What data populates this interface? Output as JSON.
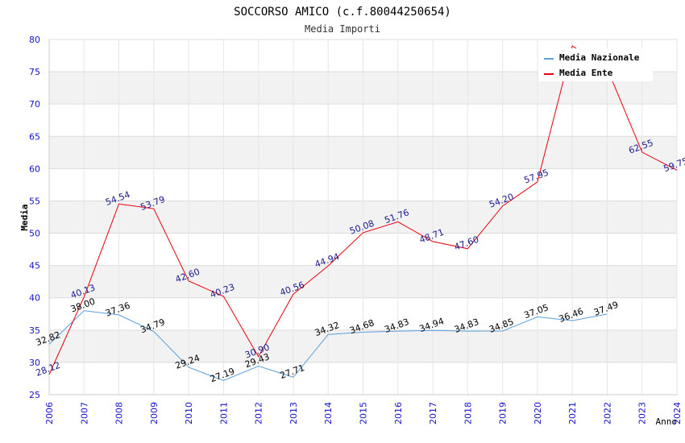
{
  "chart_data": {
    "type": "line",
    "title": "SOCCORSO AMICO (c.f.80044250654)",
    "subtitle": "Media Importi",
    "xlabel": "Anno",
    "ylabel": "Media",
    "ylim": [
      25,
      80
    ],
    "yticks": [
      "25",
      "30",
      "35",
      "40",
      "45",
      "50",
      "55",
      "60",
      "65",
      "70",
      "75",
      "80"
    ],
    "x": [
      "2006",
      "2007",
      "2008",
      "2009",
      "2010",
      "2011",
      "2012",
      "2013",
      "2014",
      "2015",
      "2016",
      "2017",
      "2018",
      "2019",
      "2020",
      "2021",
      "2022",
      "2023",
      "2024"
    ],
    "grid": true,
    "legend_position": "top-right",
    "series": [
      {
        "name": "Media Nazionale",
        "color": "#5aa0dc",
        "label_color": "#000000",
        "values": [
          32.82,
          38.0,
          37.36,
          34.79,
          29.24,
          27.19,
          29.43,
          27.71,
          34.32,
          34.68,
          34.83,
          34.94,
          34.83,
          34.85,
          37.05,
          36.46,
          37.49,
          null,
          null
        ],
        "labels": [
          "32.82",
          "38.00",
          "37.36",
          "34.79",
          "29.24",
          "27.19",
          "29.43",
          "27.71",
          "34.32",
          "34.68",
          "34.83",
          "34.94",
          "34.83",
          "34.85",
          "37.05",
          "36.46",
          "37.49",
          "",
          ""
        ]
      },
      {
        "name": "Media Ente",
        "color": "#e8000b",
        "label_color": "#1a1a8c",
        "values": [
          28.12,
          40.13,
          54.54,
          53.79,
          42.6,
          40.23,
          30.9,
          40.56,
          44.94,
          50.08,
          51.76,
          48.71,
          47.6,
          54.2,
          57.95,
          79.0,
          75.5,
          62.55,
          59.75
        ],
        "labels": [
          "28.12",
          "40.13",
          "54.54",
          "53.79",
          "42.60",
          "40.23",
          "30.90",
          "40.56",
          "44.94",
          "50.08",
          "51.76",
          "48.71",
          "47.60",
          "54.20",
          "57.95",
          "",
          "",
          "62.55",
          "59.75"
        ]
      }
    ]
  }
}
